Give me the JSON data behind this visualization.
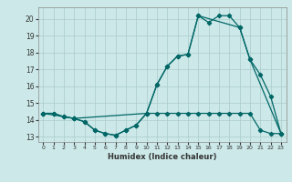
{
  "xlabel": "Humidex (Indice chaleur)",
  "bg_color": "#cce8e8",
  "grid_color": "#aacccc",
  "line_color": "#006666",
  "xlim": [
    -0.5,
    23.5
  ],
  "ylim": [
    12.7,
    20.7
  ],
  "xticks": [
    0,
    1,
    2,
    3,
    4,
    5,
    6,
    7,
    8,
    9,
    10,
    11,
    12,
    13,
    14,
    15,
    16,
    17,
    18,
    19,
    20,
    21,
    22,
    23
  ],
  "yticks": [
    13,
    14,
    15,
    16,
    17,
    18,
    19,
    20
  ],
  "series1_x": [
    0,
    1,
    2,
    3,
    4,
    5,
    6,
    7,
    8,
    9,
    10,
    11,
    12,
    13,
    14,
    15,
    16,
    17,
    18,
    19,
    20,
    21,
    22,
    23
  ],
  "series1_y": [
    14.4,
    14.4,
    14.2,
    14.1,
    13.9,
    13.4,
    13.2,
    13.1,
    13.4,
    13.7,
    14.4,
    16.1,
    17.2,
    17.8,
    17.9,
    20.2,
    19.8,
    20.2,
    20.2,
    19.5,
    17.6,
    16.7,
    15.4,
    13.2
  ],
  "series2_x": [
    0,
    1,
    2,
    3,
    4,
    5,
    6,
    7,
    8,
    9,
    10,
    11,
    12,
    13,
    14,
    15,
    16,
    17,
    18,
    19,
    20,
    21,
    22,
    23
  ],
  "series2_y": [
    14.4,
    14.4,
    14.2,
    14.1,
    13.9,
    13.4,
    13.2,
    13.1,
    13.4,
    13.7,
    14.4,
    14.4,
    14.4,
    14.4,
    14.4,
    14.4,
    14.4,
    14.4,
    14.4,
    14.4,
    14.4,
    13.4,
    13.2,
    13.2
  ],
  "series3_x": [
    0,
    3,
    10,
    11,
    12,
    13,
    14,
    15,
    19,
    20,
    23
  ],
  "series3_y": [
    14.4,
    14.1,
    14.4,
    16.1,
    17.2,
    17.8,
    17.9,
    20.2,
    19.5,
    17.6,
    13.2
  ]
}
